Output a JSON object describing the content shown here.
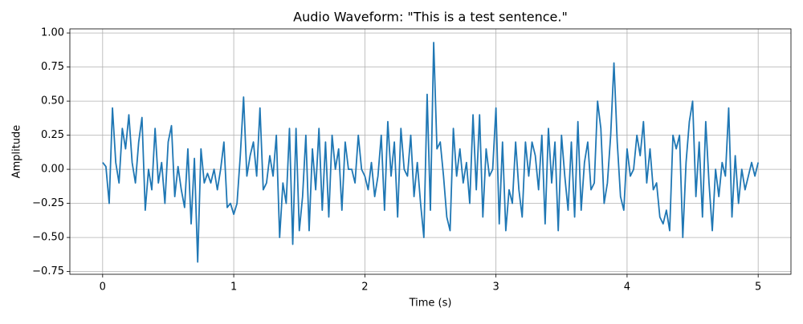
{
  "chart_data": {
    "type": "line",
    "title": "Audio Waveform: \"This is a test sentence.\"",
    "xlabel": "Time (s)",
    "ylabel": "Amplitude",
    "xlim": [
      -0.25,
      5.25
    ],
    "ylim": [
      -0.77,
      1.03
    ],
    "xticks": [
      0,
      1,
      2,
      3,
      4,
      5
    ],
    "yticks": [
      {
        "value": -0.75,
        "label": "−0.75"
      },
      {
        "value": -0.5,
        "label": "−0.50"
      },
      {
        "value": -0.25,
        "label": "−0.25"
      },
      {
        "value": 0,
        "label": "0.00"
      },
      {
        "value": 0.25,
        "label": "0.25"
      },
      {
        "value": 0.5,
        "label": "0.50"
      },
      {
        "value": 0.75,
        "label": "0.75"
      },
      {
        "value": 1,
        "label": "1.00"
      }
    ],
    "grid": true,
    "x": [
      0,
      0.025,
      0.05,
      0.075,
      0.1,
      0.125,
      0.15,
      0.175,
      0.2,
      0.225,
      0.25,
      0.275,
      0.3,
      0.325,
      0.35,
      0.375,
      0.4,
      0.425,
      0.45,
      0.475,
      0.5,
      0.525,
      0.55,
      0.575,
      0.6,
      0.625,
      0.65,
      0.675,
      0.7,
      0.725,
      0.75,
      0.775,
      0.8,
      0.825,
      0.85,
      0.875,
      0.9,
      0.925,
      0.95,
      0.975,
      1,
      1.025,
      1.05,
      1.075,
      1.1,
      1.125,
      1.15,
      1.175,
      1.2,
      1.225,
      1.25,
      1.275,
      1.3,
      1.325,
      1.35,
      1.375,
      1.4,
      1.425,
      1.45,
      1.475,
      1.5,
      1.525,
      1.55,
      1.575,
      1.6,
      1.625,
      1.65,
      1.675,
      1.7,
      1.725,
      1.75,
      1.775,
      1.8,
      1.825,
      1.85,
      1.875,
      1.9,
      1.925,
      1.95,
      1.975,
      2,
      2.025,
      2.05,
      2.075,
      2.1,
      2.125,
      2.15,
      2.175,
      2.2,
      2.225,
      2.25,
      2.275,
      2.3,
      2.325,
      2.35,
      2.375,
      2.4,
      2.425,
      2.45,
      2.475,
      2.5,
      2.525,
      2.55,
      2.575,
      2.6,
      2.625,
      2.65,
      2.675,
      2.7,
      2.725,
      2.75,
      2.775,
      2.8,
      2.825,
      2.85,
      2.875,
      2.9,
      2.925,
      2.95,
      2.975,
      3,
      3.025,
      3.05,
      3.075,
      3.1,
      3.125,
      3.15,
      3.175,
      3.2,
      3.225,
      3.25,
      3.275,
      3.3,
      3.325,
      3.35,
      3.375,
      3.4,
      3.425,
      3.45,
      3.475,
      3.5,
      3.525,
      3.55,
      3.575,
      3.6,
      3.625,
      3.65,
      3.675,
      3.7,
      3.725,
      3.75,
      3.775,
      3.8,
      3.825,
      3.85,
      3.875,
      3.9,
      3.925,
      3.95,
      3.975,
      4,
      4.025,
      4.05,
      4.075,
      4.1,
      4.125,
      4.15,
      4.175,
      4.2,
      4.225,
      4.25,
      4.275,
      4.3,
      4.325,
      4.35,
      4.375,
      4.4,
      4.425,
      4.45,
      4.475,
      4.5,
      4.525,
      4.55,
      4.575,
      4.6,
      4.625,
      4.65,
      4.675,
      4.7,
      4.725,
      4.75,
      4.775,
      4.8,
      4.825,
      4.85,
      4.875,
      4.9,
      4.925,
      4.95,
      4.975,
      5
    ],
    "series": [
      {
        "name": "waveform",
        "color": "#1f77b4",
        "values": [
          0.05,
          0.02,
          -0.25,
          0.45,
          0.05,
          -0.1,
          0.3,
          0.15,
          0.4,
          0.05,
          -0.1,
          0.2,
          0.38,
          -0.3,
          0,
          -0.15,
          0.3,
          -0.1,
          0.05,
          -0.25,
          0.2,
          0.32,
          -0.2,
          0.02,
          -0.15,
          -0.28,
          0.15,
          -0.4,
          0.08,
          -0.68,
          0.15,
          -0.1,
          -0.03,
          -0.1,
          0,
          -0.15,
          0,
          0.2,
          -0.28,
          -0.25,
          -0.33,
          -0.25,
          0.1,
          0.53,
          -0.05,
          0.1,
          0.2,
          -0.05,
          0.45,
          -0.15,
          -0.1,
          0.1,
          -0.05,
          0.25,
          -0.5,
          -0.1,
          -0.25,
          0.3,
          -0.55,
          0.3,
          -0.45,
          -0.2,
          0.25,
          -0.45,
          0.15,
          -0.15,
          0.3,
          -0.3,
          0.2,
          -0.35,
          0.25,
          0,
          0.15,
          -0.3,
          0.2,
          0,
          0,
          -0.1,
          0.25,
          0,
          -0.05,
          -0.15,
          0.05,
          -0.2,
          -0.05,
          0.25,
          -0.3,
          0.35,
          -0.05,
          0.2,
          -0.35,
          0.3,
          0,
          -0.05,
          0.25,
          -0.2,
          0.05,
          -0.25,
          -0.5,
          0.55,
          -0.3,
          0.93,
          0.15,
          0.2,
          -0.05,
          -0.35,
          -0.45,
          0.3,
          -0.05,
          0.15,
          -0.1,
          0.05,
          -0.25,
          0.4,
          -0.15,
          0.4,
          -0.35,
          0.15,
          -0.05,
          0,
          0.45,
          -0.4,
          0.2,
          -0.45,
          -0.15,
          -0.25,
          0.2,
          -0.15,
          -0.35,
          0.2,
          -0.05,
          0.2,
          0.1,
          -0.15,
          0.25,
          -0.4,
          0.3,
          -0.1,
          0.2,
          -0.45,
          0.25,
          -0.05,
          -0.3,
          0.2,
          -0.35,
          0.35,
          -0.3,
          0.05,
          0.2,
          -0.15,
          -0.1,
          0.5,
          0.3,
          -0.25,
          -0.1,
          0.25,
          0.78,
          0.2,
          -0.2,
          -0.3,
          0.15,
          -0.05,
          0,
          0.25,
          0.1,
          0.35,
          -0.1,
          0.15,
          -0.15,
          -0.1,
          -0.35,
          -0.4,
          -0.3,
          -0.45,
          0.25,
          0.15,
          0.25,
          -0.5,
          0.05,
          0.35,
          0.5,
          -0.2,
          0.2,
          -0.35,
          0.35,
          -0.1,
          -0.45,
          0,
          -0.2,
          0.05,
          -0.05,
          0.45,
          -0.35,
          0.1,
          -0.25,
          0,
          -0.15,
          -0.05,
          0.05,
          -0.05,
          0.05
        ]
      }
    ]
  }
}
